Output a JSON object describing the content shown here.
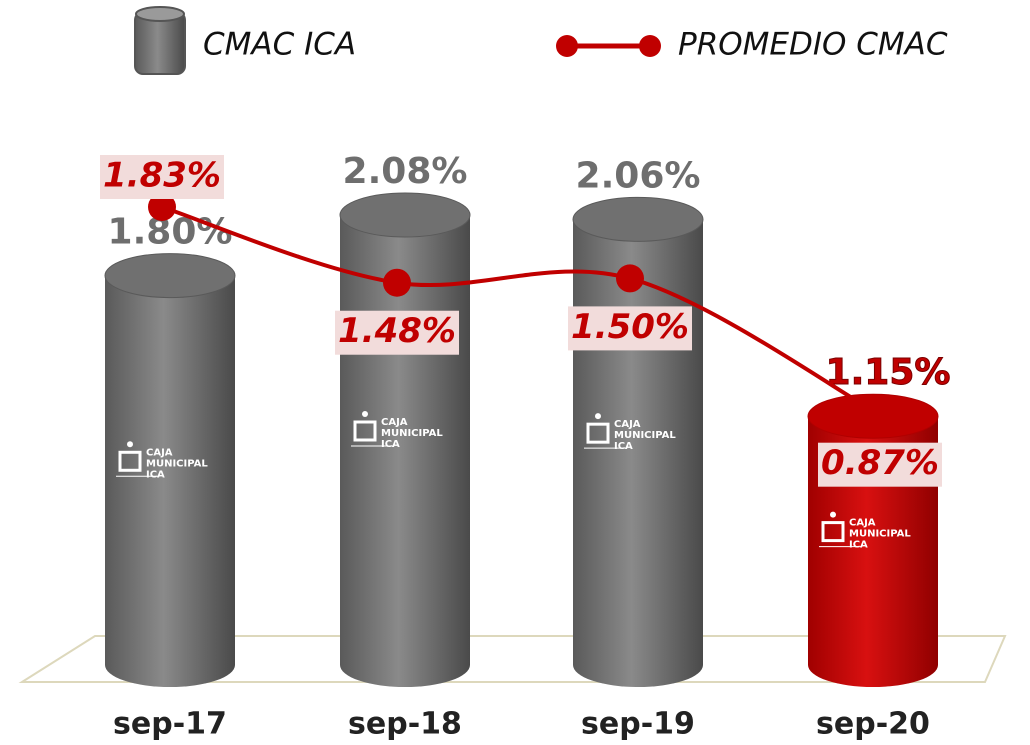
{
  "chart_data": {
    "type": "bar",
    "categories": [
      "sep-17",
      "sep-18",
      "sep-19",
      "sep-20"
    ],
    "logo_text": [
      "CAJA",
      "MUNICIPAL",
      "ICA"
    ],
    "series": [
      {
        "name": "CMAC ICA",
        "type": "bar",
        "color": "#707070",
        "colors": [
          "#707070",
          "#707070",
          "#707070",
          "#c00000"
        ],
        "values": [
          1.8,
          2.08,
          2.06,
          1.15
        ],
        "value_labels": [
          "1.80%",
          "2.08%",
          "2.06%",
          "1.15%"
        ]
      },
      {
        "name": "PROMEDIO CMAC",
        "type": "line",
        "color": "#c00000",
        "values": [
          1.83,
          1.48,
          1.5,
          0.87
        ],
        "value_labels": [
          "1.83%",
          "1.48%",
          "1.50%",
          "0.87%"
        ]
      }
    ]
  }
}
